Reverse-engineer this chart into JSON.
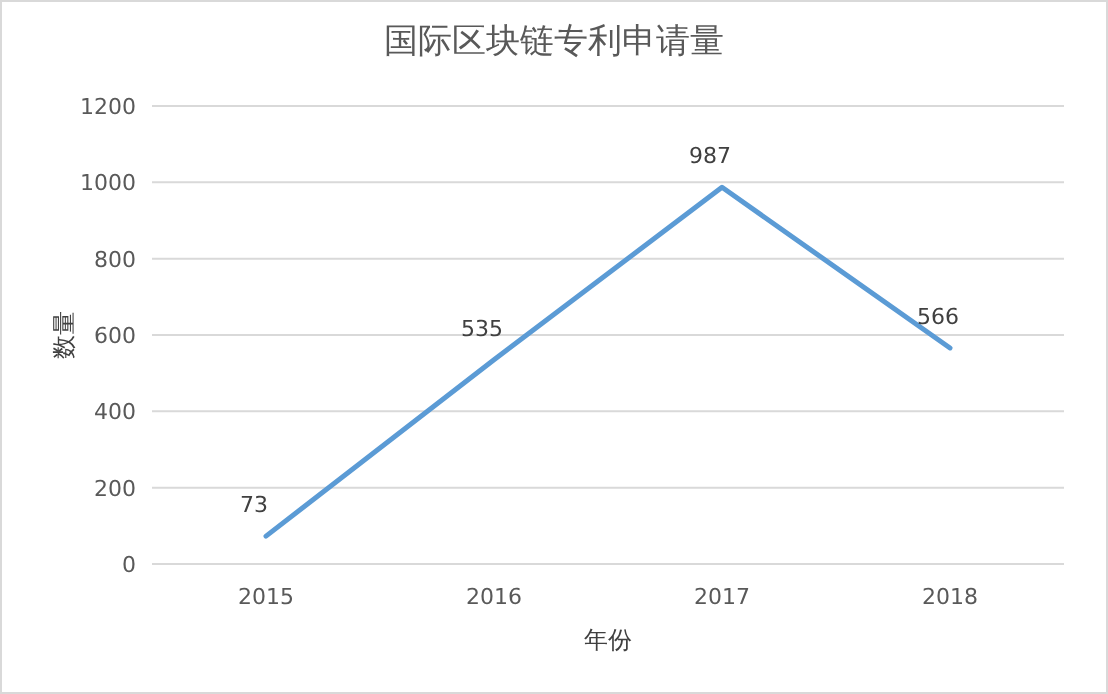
{
  "chart_data": {
    "type": "line",
    "title": "国际区块链专利申请量",
    "xlabel": "年份",
    "ylabel": "数量",
    "categories": [
      "2015",
      "2016",
      "2017",
      "2018"
    ],
    "series": [
      {
        "color": "#5b9bd5",
        "values": [
          73,
          535,
          987,
          566
        ]
      }
    ],
    "ylim": [
      0,
      1200
    ],
    "yticks": [
      0,
      200,
      400,
      600,
      800,
      1000,
      1200
    ],
    "grid": "y",
    "data_labels": true,
    "marker": "none",
    "line_style": "solid"
  }
}
